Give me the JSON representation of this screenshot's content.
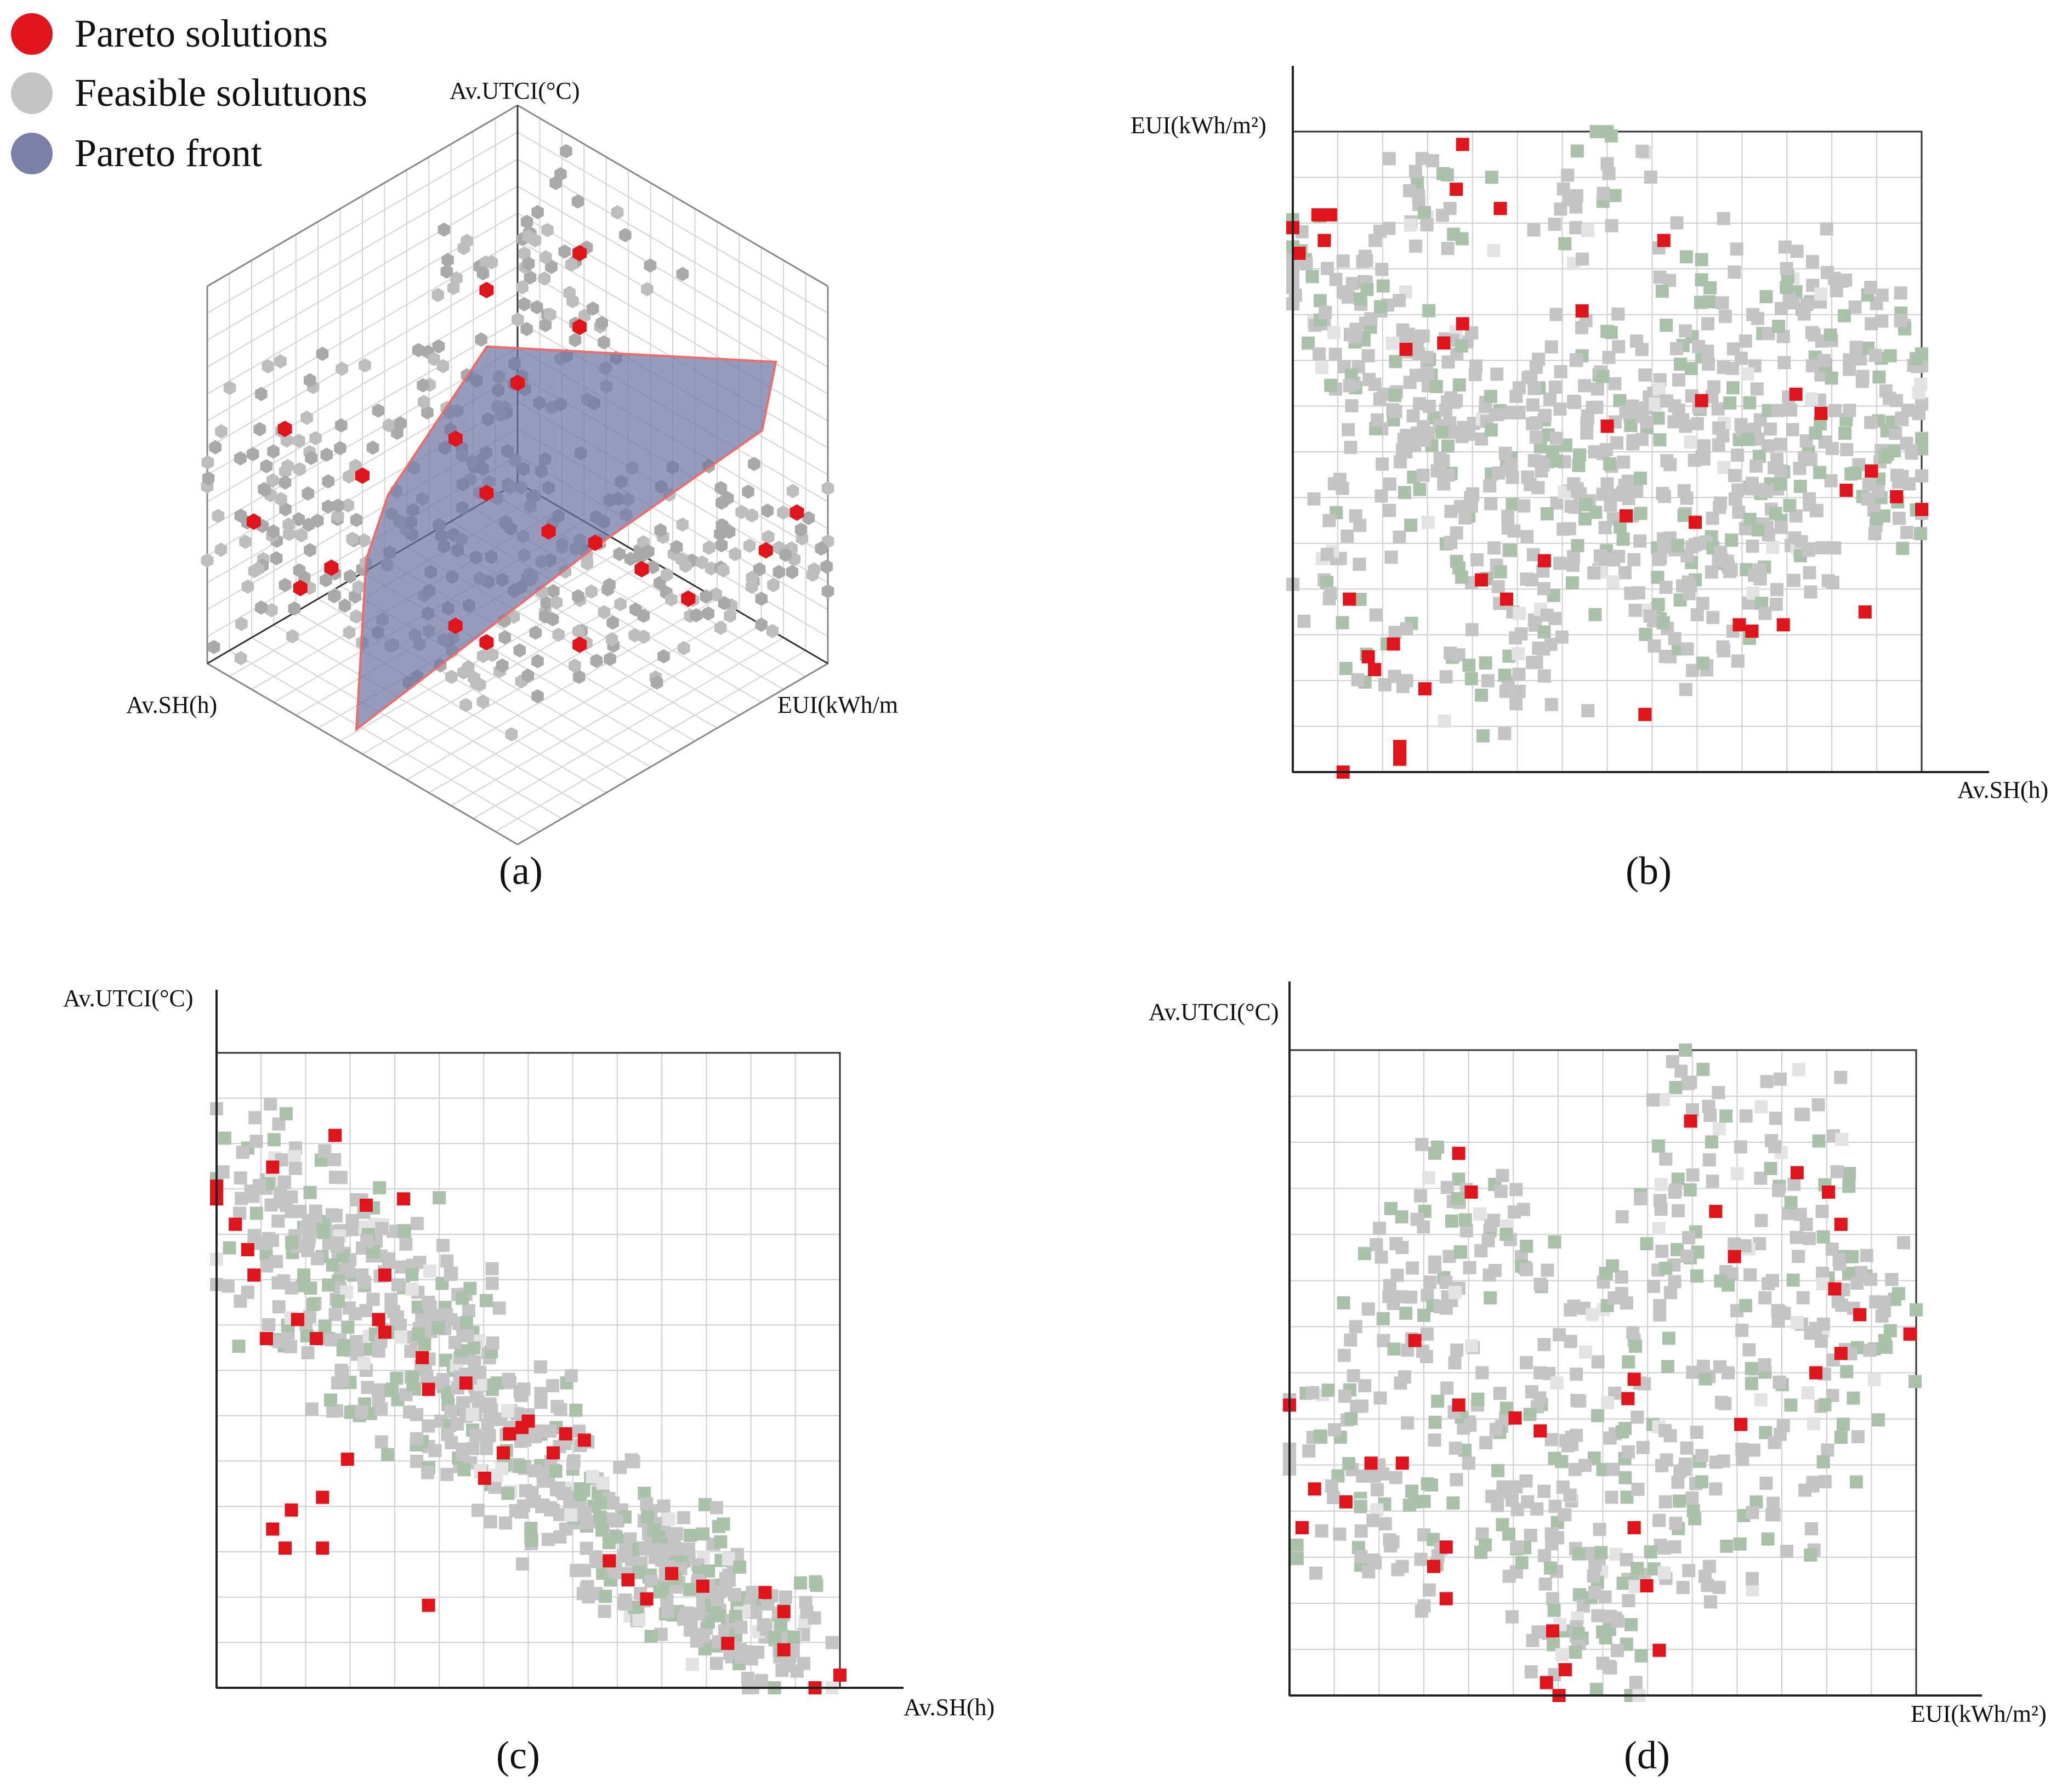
{
  "legend": {
    "pareto_label": "Pareto solutions",
    "feasible_label": "Feasible solutuons",
    "front_label": "Pareto front",
    "pareto_color": "#e0141b",
    "feasible_color": "#c4c4c4",
    "feasible_alt_color": "#a9c2a9",
    "front_color": "#7a80a8"
  },
  "chart_data": [
    {
      "id": "a",
      "caption": "(a)",
      "type": "scatter",
      "projection": "3d-isometric",
      "title": "",
      "axes": {
        "vertical": "Av.UTCI(°C)",
        "left": "Av.SH(h)",
        "right": "EUI(kWh/m"
      },
      "series": [
        {
          "name": "Pareto solutions",
          "points_sh_eui_utci": [
            [
              0.8,
              0.05,
              0.55
            ],
            [
              0.95,
              0.1,
              0.4
            ],
            [
              0.7,
              0.2,
              0.45
            ],
            [
              0.6,
              0.4,
              0.1
            ],
            [
              0.4,
              0.6,
              0.05
            ],
            [
              0.15,
              0.7,
              0.1
            ],
            [
              0.25,
              0.5,
              0.2
            ],
            [
              0.1,
              0.9,
              0.3
            ],
            [
              0.05,
              0.95,
              0.4
            ],
            [
              0.35,
              0.35,
              0.6
            ],
            [
              0.3,
              0.2,
              0.75
            ],
            [
              0.2,
              0.4,
              0.7
            ],
            [
              0.5,
              0.3,
              0.5
            ],
            [
              0.45,
              0.55,
              0.35
            ],
            [
              0.3,
              0.7,
              0.25
            ],
            [
              0.85,
              0.15,
              0.2
            ],
            [
              0.9,
              0.3,
              0.35
            ],
            [
              0.6,
              0.5,
              0.5
            ],
            [
              0.1,
              0.3,
              0.8
            ],
            [
              0.7,
              0.6,
              0.2
            ]
          ]
        },
        {
          "name": "Pareto front",
          "vertices_sh_eui_utci": [
            [
              0.95,
              0.05,
              0.45
            ],
            [
              0.65,
              0.1,
              0.8
            ],
            [
              0.05,
              0.2,
              0.95
            ],
            [
              0.05,
              0.85,
              0.45
            ],
            [
              0.15,
              0.95,
              0.2
            ],
            [
              0.6,
              0.45,
              0.05
            ],
            [
              0.9,
              0.2,
              0.1
            ]
          ]
        }
      ]
    },
    {
      "id": "b",
      "caption": "(b)",
      "type": "scatter",
      "title": "",
      "xlabel": "Av.SH(h)",
      "ylabel": "EUI(kWh/m²)",
      "xlim": [
        0,
        1
      ],
      "ylim": [
        0,
        1
      ],
      "series": [
        {
          "name": "Pareto solutions",
          "x": [
            0.27,
            0.26,
            0.33,
            0.04,
            0.06,
            0.0,
            0.01,
            0.05,
            0.59,
            0.46,
            0.27,
            0.24,
            0.18,
            0.5,
            0.5,
            0.65,
            0.8,
            0.84,
            0.92,
            0.88,
            0.96,
            1.0,
            0.53,
            0.64,
            0.4,
            0.3,
            0.34,
            0.09,
            0.16,
            0.12,
            0.13,
            0.21,
            0.56,
            0.71,
            0.73,
            0.78,
            0.91,
            0.17,
            0.17,
            0.08
          ],
          "y": [
            0.98,
            0.91,
            0.88,
            0.87,
            0.87,
            0.85,
            0.81,
            0.83,
            0.83,
            0.72,
            0.7,
            0.67,
            0.66,
            0.54,
            0.54,
            0.58,
            0.59,
            0.56,
            0.47,
            0.44,
            0.43,
            0.41,
            0.4,
            0.39,
            0.33,
            0.3,
            0.27,
            0.27,
            0.2,
            0.18,
            0.16,
            0.13,
            0.09,
            0.23,
            0.22,
            0.23,
            0.25,
            0.04,
            0.02,
            0.0
          ]
        },
        {
          "name": "Feasible solutions",
          "x": [
            0.02,
            0.05,
            0.08,
            0.1,
            0.12,
            0.14,
            0.16,
            0.18,
            0.2,
            0.22,
            0.24,
            0.26,
            0.28,
            0.3,
            0.32,
            0.34,
            0.36,
            0.38,
            0.4,
            0.42,
            0.44,
            0.46,
            0.48,
            0.5,
            0.52,
            0.54,
            0.56,
            0.58,
            0.6,
            0.62,
            0.64,
            0.66,
            0.68,
            0.7,
            0.72,
            0.74,
            0.76,
            0.78,
            0.8,
            0.82,
            0.84,
            0.86,
            0.88,
            0.9,
            0.92,
            0.94,
            0.96,
            0.98,
            0.15,
            0.35,
            0.55,
            0.75,
            0.45,
            0.25,
            0.65,
            0.85,
            0.05,
            0.95,
            0.4,
            0.6,
            0.3,
            0.7,
            0.2,
            0.8,
            0.1,
            0.5
          ],
          "y": [
            0.8,
            0.7,
            0.75,
            0.6,
            0.65,
            0.72,
            0.55,
            0.5,
            0.68,
            0.62,
            0.45,
            0.58,
            0.4,
            0.52,
            0.35,
            0.48,
            0.6,
            0.3,
            0.55,
            0.42,
            0.38,
            0.65,
            0.5,
            0.45,
            0.58,
            0.4,
            0.62,
            0.35,
            0.48,
            0.55,
            0.3,
            0.7,
            0.42,
            0.6,
            0.38,
            0.52,
            0.45,
            0.68,
            0.4,
            0.5,
            0.62,
            0.35,
            0.55,
            0.48,
            0.7,
            0.4,
            0.58,
            0.45,
            0.2,
            0.25,
            0.28,
            0.32,
            0.85,
            0.88,
            0.8,
            0.78,
            0.3,
            0.65,
            0.15,
            0.18,
            0.12,
            0.22,
            0.9,
            0.75,
            0.4,
            0.95
          ]
        }
      ]
    },
    {
      "id": "c",
      "caption": "(c)",
      "type": "scatter",
      "title": "",
      "xlabel": "Av.SH(h)",
      "ylabel": "Av.UTCI(°C)",
      "xlim": [
        0,
        1
      ],
      "ylim": [
        0,
        1
      ],
      "series": [
        {
          "name": "Pareto solutions",
          "x": [
            0.19,
            0.09,
            0.0,
            0.0,
            0.03,
            0.05,
            0.06,
            0.24,
            0.3,
            0.27,
            0.13,
            0.16,
            0.26,
            0.27,
            0.08,
            0.33,
            0.34,
            0.4,
            0.47,
            0.5,
            0.46,
            0.49,
            0.59,
            0.56,
            0.54,
            0.43,
            0.21,
            0.17,
            0.12,
            0.09,
            0.11,
            0.17,
            0.34,
            0.69,
            0.63,
            0.78,
            0.73,
            0.66,
            0.82,
            0.88,
            0.91,
            0.91,
            0.96,
            1.0
          ],
          "y": [
            0.87,
            0.82,
            0.79,
            0.77,
            0.73,
            0.69,
            0.65,
            0.76,
            0.77,
            0.65,
            0.58,
            0.55,
            0.58,
            0.56,
            0.55,
            0.52,
            0.47,
            0.48,
            0.4,
            0.42,
            0.37,
            0.41,
            0.39,
            0.4,
            0.37,
            0.33,
            0.36,
            0.3,
            0.28,
            0.25,
            0.22,
            0.22,
            0.13,
            0.14,
            0.2,
            0.16,
            0.18,
            0.17,
            0.07,
            0.15,
            0.12,
            0.06,
            0.0,
            0.02
          ]
        },
        {
          "name": "Feasible solutions",
          "x": [
            0.05,
            0.08,
            0.12,
            0.15,
            0.18,
            0.2,
            0.22,
            0.25,
            0.28,
            0.3,
            0.32,
            0.35,
            0.38,
            0.4,
            0.42,
            0.45,
            0.48,
            0.5,
            0.52,
            0.55,
            0.58,
            0.6,
            0.62,
            0.65,
            0.68,
            0.7,
            0.72,
            0.75,
            0.78,
            0.8,
            0.82,
            0.85,
            0.88,
            0.9,
            0.92,
            0.1,
            0.18,
            0.26,
            0.34,
            0.44,
            0.54,
            0.64,
            0.74,
            0.84,
            0.06,
            0.14,
            0.24,
            0.36,
            0.46,
            0.56,
            0.66,
            0.76,
            0.86,
            0.4,
            0.3,
            0.2
          ],
          "y": [
            0.85,
            0.8,
            0.75,
            0.78,
            0.7,
            0.72,
            0.65,
            0.68,
            0.6,
            0.63,
            0.55,
            0.58,
            0.5,
            0.53,
            0.45,
            0.48,
            0.4,
            0.43,
            0.35,
            0.38,
            0.3,
            0.33,
            0.25,
            0.28,
            0.22,
            0.24,
            0.18,
            0.2,
            0.14,
            0.16,
            0.1,
            0.12,
            0.08,
            0.1,
            0.05,
            0.6,
            0.55,
            0.45,
            0.38,
            0.32,
            0.28,
            0.2,
            0.12,
            0.06,
            0.7,
            0.65,
            0.5,
            0.42,
            0.35,
            0.25,
            0.18,
            0.24,
            0.14,
            0.62,
            0.72,
            0.5
          ]
        }
      ]
    },
    {
      "id": "d",
      "caption": "(d)",
      "type": "scatter",
      "title": "",
      "xlabel": "EUI(kWh/m²)",
      "ylabel": "Av.UTCI(°C)",
      "xlim": [
        0,
        1
      ],
      "ylim": [
        0,
        1
      ],
      "series": [
        {
          "name": "Pareto solutions",
          "x": [
            0.64,
            0.27,
            0.29,
            0.81,
            0.86,
            0.68,
            0.88,
            0.71,
            0.87,
            0.91,
            0.88,
            0.99,
            0.84,
            0.2,
            0.55,
            0.27,
            0.36,
            0.4,
            0.54,
            0.72,
            0.0,
            0.13,
            0.18,
            0.09,
            0.04,
            0.02,
            0.55,
            0.25,
            0.23,
            0.57,
            0.25,
            0.42,
            0.59,
            0.44,
            0.41,
            0.43
          ],
          "y": [
            0.89,
            0.84,
            0.78,
            0.81,
            0.78,
            0.75,
            0.73,
            0.68,
            0.63,
            0.59,
            0.53,
            0.56,
            0.5,
            0.55,
            0.49,
            0.45,
            0.43,
            0.41,
            0.46,
            0.42,
            0.45,
            0.36,
            0.36,
            0.3,
            0.32,
            0.26,
            0.26,
            0.23,
            0.2,
            0.17,
            0.15,
            0.1,
            0.07,
            0.04,
            0.02,
            0.0
          ]
        },
        {
          "name": "Feasible solutions",
          "x": [
            0.05,
            0.1,
            0.15,
            0.2,
            0.25,
            0.3,
            0.35,
            0.4,
            0.45,
            0.5,
            0.55,
            0.6,
            0.65,
            0.7,
            0.75,
            0.8,
            0.85,
            0.9,
            0.95,
            0.08,
            0.18,
            0.28,
            0.38,
            0.48,
            0.58,
            0.68,
            0.78,
            0.88,
            0.12,
            0.22,
            0.32,
            0.42,
            0.52,
            0.62,
            0.72,
            0.82,
            0.92,
            0.47,
            0.37,
            0.57,
            0.67,
            0.77,
            0.27,
            0.17,
            0.5,
            0.44,
            0.54,
            0.64
          ],
          "y": [
            0.4,
            0.35,
            0.55,
            0.3,
            0.6,
            0.45,
            0.25,
            0.5,
            0.4,
            0.35,
            0.55,
            0.3,
            0.65,
            0.5,
            0.7,
            0.45,
            0.75,
            0.6,
            0.55,
            0.25,
            0.2,
            0.38,
            0.3,
            0.22,
            0.42,
            0.32,
            0.58,
            0.4,
            0.48,
            0.62,
            0.72,
            0.15,
            0.12,
            0.8,
            0.85,
            0.9,
            0.65,
            0.6,
            0.68,
            0.7,
            0.2,
            0.28,
            0.8,
            0.7,
            0.05,
            0.1,
            0.18,
            0.95
          ]
        }
      ]
    }
  ]
}
